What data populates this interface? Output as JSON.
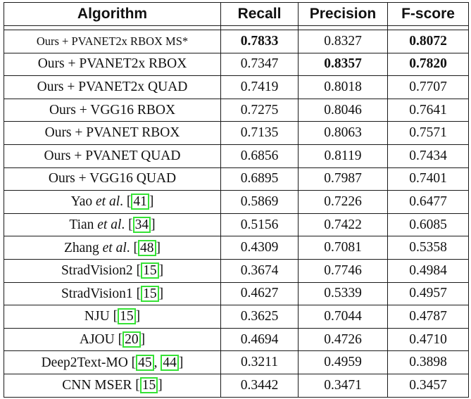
{
  "table": {
    "headers": {
      "algorithm": "Algorithm",
      "recall": "Recall",
      "precision": "Precision",
      "fscore": "F-score"
    },
    "rows": [
      {
        "algo": "Ours + PVANET2x RBOX MS*",
        "recall": "0.7833",
        "precision": "0.8327",
        "fscore": "0.8072",
        "bold": [
          "recall",
          "fscore"
        ]
      },
      {
        "algo": "Ours + PVANET2x RBOX",
        "recall": "0.7347",
        "precision": "0.8357",
        "fscore": "0.7820",
        "bold": [
          "precision",
          "fscore"
        ]
      },
      {
        "algo": "Ours + PVANET2x QUAD",
        "recall": "0.7419",
        "precision": "0.8018",
        "fscore": "0.7707",
        "bold": []
      },
      {
        "algo": "Ours + VGG16 RBOX",
        "recall": "0.7275",
        "precision": "0.8046",
        "fscore": "0.7641",
        "bold": []
      },
      {
        "algo": "Ours + PVANET RBOX",
        "recall": "0.7135",
        "precision": "0.8063",
        "fscore": "0.7571",
        "bold": []
      },
      {
        "algo": "Ours + PVANET QUAD",
        "recall": "0.6856",
        "precision": "0.8119",
        "fscore": "0.7434",
        "bold": []
      },
      {
        "algo": "Ours + VGG16 QUAD",
        "recall": "0.6895",
        "precision": "0.7987",
        "fscore": "0.7401",
        "bold": []
      },
      {
        "algo": "Yao",
        "algo_italic": "et al",
        "algo_suffix": ".",
        "cites": [
          "41"
        ],
        "recall": "0.5869",
        "precision": "0.7226",
        "fscore": "0.6477",
        "bold": []
      },
      {
        "algo": "Tian",
        "algo_italic": "et al",
        "algo_suffix": ".",
        "cites": [
          "34"
        ],
        "recall": "0.5156",
        "precision": "0.7422",
        "fscore": "0.6085",
        "bold": []
      },
      {
        "algo": "Zhang",
        "algo_italic": "et al",
        "algo_suffix": ".",
        "cites": [
          "48"
        ],
        "recall": "0.4309",
        "precision": "0.7081",
        "fscore": "0.5358",
        "bold": []
      },
      {
        "algo": "StradVision2",
        "cites": [
          "15"
        ],
        "recall": "0.3674",
        "precision": "0.7746",
        "fscore": "0.4984",
        "bold": []
      },
      {
        "algo": "StradVision1",
        "cites": [
          "15"
        ],
        "recall": "0.4627",
        "precision": "0.5339",
        "fscore": "0.4957",
        "bold": []
      },
      {
        "algo": "NJU",
        "cites": [
          "15"
        ],
        "recall": "0.3625",
        "precision": "0.7044",
        "fscore": "0.4787",
        "bold": []
      },
      {
        "algo": "AJOU",
        "cites": [
          "20"
        ],
        "recall": "0.4694",
        "precision": "0.4726",
        "fscore": "0.4710",
        "bold": []
      },
      {
        "algo": "Deep2Text-MO",
        "cites": [
          "45",
          "44"
        ],
        "recall": "0.3211",
        "precision": "0.4959",
        "fscore": "0.3898",
        "bold": []
      },
      {
        "algo": "CNN MSER",
        "cites": [
          "15"
        ],
        "recall": "0.3442",
        "precision": "0.3471",
        "fscore": "0.3457",
        "bold": []
      }
    ],
    "citation_box_color": "#35e235"
  }
}
